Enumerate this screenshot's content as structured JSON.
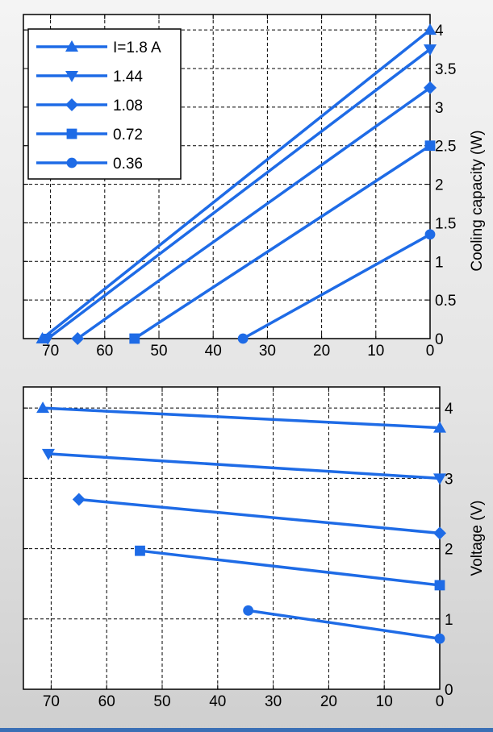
{
  "colors": {
    "series": "#1e6be6",
    "axis": "#000000",
    "grid": "#000000",
    "plot_bg": "#ffffff",
    "bottom_line": "#3a6fb5"
  },
  "legend": {
    "placement": "top-left",
    "entries": [
      {
        "label": "I=1.8 A",
        "marker": "triangle-up"
      },
      {
        "label": "1.44",
        "marker": "triangle-down"
      },
      {
        "label": "1.08",
        "marker": "diamond"
      },
      {
        "label": "0.72",
        "marker": "square"
      },
      {
        "label": "0.36",
        "marker": "circle"
      }
    ]
  },
  "chart_data": [
    {
      "type": "line",
      "ylabel": "Cooling capacity (W)",
      "xlim": [
        75,
        0
      ],
      "x_reversed": true,
      "ylim": [
        0,
        4.2
      ],
      "x_ticks": [
        70,
        60,
        50,
        40,
        30,
        20,
        10,
        0
      ],
      "y_ticks": [
        0,
        0.5,
        1,
        1.5,
        2,
        2.5,
        3,
        3.5,
        4
      ],
      "y_tick_labels": [
        "0",
        "0.5",
        "1",
        "1.5",
        "2",
        "2.5",
        "3",
        "3.5",
        "4"
      ],
      "grid": true,
      "series": [
        {
          "name": "I=1.8 A",
          "marker": "triangle-up",
          "points": [
            [
              71.5,
              0
            ],
            [
              0,
              4.0
            ]
          ]
        },
        {
          "name": "1.44",
          "marker": "triangle-down",
          "points": [
            [
              70.5,
              0
            ],
            [
              0,
              3.75
            ]
          ]
        },
        {
          "name": "1.08",
          "marker": "diamond",
          "points": [
            [
              65,
              0
            ],
            [
              0,
              3.25
            ]
          ]
        },
        {
          "name": "0.72",
          "marker": "square",
          "points": [
            [
              54.5,
              0
            ],
            [
              0,
              2.5
            ]
          ]
        },
        {
          "name": "0.36",
          "marker": "circle",
          "points": [
            [
              34.5,
              0
            ],
            [
              0,
              1.35
            ]
          ]
        }
      ]
    },
    {
      "type": "line",
      "ylabel": "Voltage (V)",
      "xlim": [
        75,
        0
      ],
      "x_reversed": true,
      "ylim": [
        0,
        4.3
      ],
      "x_ticks": [
        70,
        60,
        50,
        40,
        30,
        20,
        10,
        0
      ],
      "y_ticks": [
        0,
        1,
        2,
        3,
        4
      ],
      "y_tick_labels": [
        "0",
        "1",
        "2",
        "3",
        "4"
      ],
      "grid": true,
      "series": [
        {
          "name": "I=1.8 A",
          "marker": "triangle-up",
          "points": [
            [
              71.5,
              4.0
            ],
            [
              0,
              3.72
            ]
          ]
        },
        {
          "name": "1.44",
          "marker": "triangle-down",
          "points": [
            [
              70.5,
              3.35
            ],
            [
              0,
              3.0
            ]
          ]
        },
        {
          "name": "1.08",
          "marker": "diamond",
          "points": [
            [
              65,
              2.7
            ],
            [
              0,
              2.22
            ]
          ]
        },
        {
          "name": "0.72",
          "marker": "square",
          "points": [
            [
              54,
              1.97
            ],
            [
              0,
              1.48
            ]
          ]
        },
        {
          "name": "0.36",
          "marker": "circle",
          "points": [
            [
              34.5,
              1.12
            ],
            [
              0,
              0.72
            ]
          ]
        }
      ]
    }
  ]
}
